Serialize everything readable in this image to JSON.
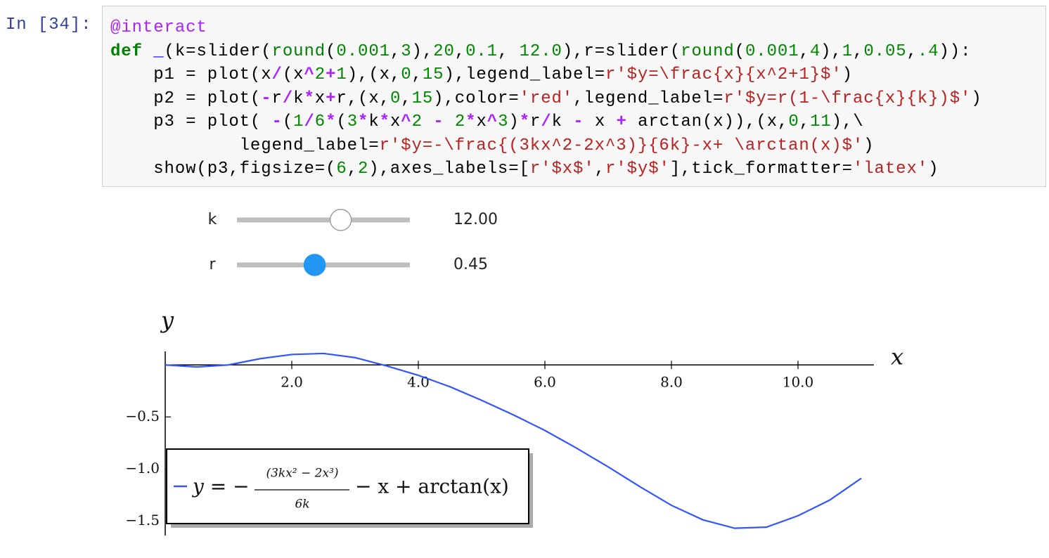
{
  "prompt": "In [34]:",
  "code": {
    "lines": [
      [
        [
          "@interact",
          "p"
        ]
      ],
      [
        [
          "def",
          "k"
        ],
        [
          " ",
          "d"
        ],
        [
          "_",
          "f"
        ],
        [
          "(k=slider(",
          "d"
        ],
        [
          "round",
          "b"
        ],
        [
          "(",
          "d"
        ],
        [
          "0.001",
          "n"
        ],
        [
          ",",
          "d"
        ],
        [
          "3",
          "n"
        ],
        [
          "),",
          "d"
        ],
        [
          "20",
          "n"
        ],
        [
          ",",
          "d"
        ],
        [
          "0.1",
          "n"
        ],
        [
          ", ",
          "d"
        ],
        [
          "12.0",
          "n"
        ],
        [
          "),r=slider(",
          "d"
        ],
        [
          "round",
          "b"
        ],
        [
          "(",
          "d"
        ],
        [
          "0.001",
          "n"
        ],
        [
          ",",
          "d"
        ],
        [
          "4",
          "n"
        ],
        [
          "),",
          "d"
        ],
        [
          "1",
          "n"
        ],
        [
          ",",
          "d"
        ],
        [
          "0.05",
          "n"
        ],
        [
          ",",
          "d"
        ],
        [
          ".4",
          "n"
        ],
        [
          ")):",
          "d"
        ]
      ],
      [
        [
          "    p1 = plot(x",
          "d"
        ],
        [
          "/",
          "o"
        ],
        [
          "(x",
          "d"
        ],
        [
          "^",
          "o"
        ],
        [
          "2",
          "n"
        ],
        [
          "+",
          "o"
        ],
        [
          "1",
          "n"
        ],
        [
          "),(x,",
          "d"
        ],
        [
          "0",
          "n"
        ],
        [
          ",",
          "d"
        ],
        [
          "15",
          "n"
        ],
        [
          "),legend_label=",
          "d"
        ],
        [
          "r'$y=\\frac{x}{x^2+1}$'",
          "s"
        ],
        [
          ")",
          "d"
        ]
      ],
      [
        [
          "    p2 = plot(",
          "d"
        ],
        [
          "-",
          "o"
        ],
        [
          "r",
          "d"
        ],
        [
          "/",
          "o"
        ],
        [
          "k",
          "d"
        ],
        [
          "*",
          "o"
        ],
        [
          "x",
          "d"
        ],
        [
          "+",
          "o"
        ],
        [
          "r,(x,",
          "d"
        ],
        [
          "0",
          "n"
        ],
        [
          ",",
          "d"
        ],
        [
          "15",
          "n"
        ],
        [
          "),color=",
          "d"
        ],
        [
          "'red'",
          "s"
        ],
        [
          ",legend_label=",
          "d"
        ],
        [
          "r'$y=r(1-\\frac{x}{k})$'",
          "s"
        ],
        [
          ")",
          "d"
        ]
      ],
      [
        [
          "    p3 = plot( ",
          "d"
        ],
        [
          "-",
          "o"
        ],
        [
          "(",
          "d"
        ],
        [
          "1",
          "n"
        ],
        [
          "/",
          "o"
        ],
        [
          "6",
          "n"
        ],
        [
          "*",
          "o"
        ],
        [
          "(",
          "d"
        ],
        [
          "3",
          "n"
        ],
        [
          "*",
          "o"
        ],
        [
          "k",
          "d"
        ],
        [
          "*",
          "o"
        ],
        [
          "x",
          "d"
        ],
        [
          "^",
          "o"
        ],
        [
          "2",
          "n"
        ],
        [
          " ",
          "d"
        ],
        [
          "-",
          "o"
        ],
        [
          " ",
          "d"
        ],
        [
          "2",
          "n"
        ],
        [
          "*",
          "o"
        ],
        [
          "x",
          "d"
        ],
        [
          "^",
          "o"
        ],
        [
          "3",
          "n"
        ],
        [
          ")",
          "d"
        ],
        [
          "*",
          "o"
        ],
        [
          "r",
          "d"
        ],
        [
          "/",
          "o"
        ],
        [
          "k ",
          "d"
        ],
        [
          "-",
          "o"
        ],
        [
          " x ",
          "d"
        ],
        [
          "+",
          "o"
        ],
        [
          " arctan(x)),(x,",
          "d"
        ],
        [
          "0",
          "n"
        ],
        [
          ",",
          "d"
        ],
        [
          "11",
          "n"
        ],
        [
          "),\\",
          "d"
        ]
      ],
      [
        [
          "            legend_label=",
          "d"
        ],
        [
          "r'$y=-\\frac{(3kx^2-2x^3)}{6k}-x+ \\arctan(x)$'",
          "s"
        ],
        [
          ")",
          "d"
        ]
      ],
      [
        [
          "    show(p3,figsize=(",
          "d"
        ],
        [
          "6",
          "n"
        ],
        [
          ",",
          "d"
        ],
        [
          "2",
          "n"
        ],
        [
          "),axes_labels=[",
          "d"
        ],
        [
          "r'$x$'",
          "s"
        ],
        [
          ",",
          "d"
        ],
        [
          "r'$y$'",
          "s"
        ],
        [
          "],tick_formatter=",
          "d"
        ],
        [
          "'latex'",
          "s"
        ],
        [
          ")",
          "d"
        ]
      ]
    ]
  },
  "sliders": [
    {
      "name": "k",
      "min": 0.001,
      "max": 20,
      "value": {
        "value": 12,
        "label": "12.00"
      },
      "active": false
    },
    {
      "name": "r",
      "min": 0.001,
      "max": 1,
      "value": {
        "value": 0.45,
        "label": "0.45"
      },
      "active": true
    }
  ],
  "chart_data": {
    "type": "line",
    "x_label": "x",
    "y_label": "y",
    "x": [
      0,
      0.5,
      1,
      1.5,
      2,
      2.5,
      3,
      3.5,
      4,
      4.5,
      5,
      5.5,
      6,
      6.5,
      7,
      7.5,
      8,
      8.5,
      9,
      9.5,
      10,
      10.5,
      11
    ],
    "series": [
      {
        "color": "#3355ff",
        "values": [
          0,
          -0.02,
          0,
          0.06,
          0.1,
          0.11,
          0.07,
          -0.01,
          -0.1,
          -0.21,
          -0.34,
          -0.48,
          -0.63,
          -0.8,
          -0.98,
          -1.17,
          -1.35,
          -1.49,
          -1.57,
          -1.56,
          -1.45,
          -1.3,
          -1.09
        ]
      }
    ],
    "legend": {
      "prefix": "y = −",
      "numerator": "(3kx² − 2x³)",
      "denominator": "6k",
      "suffix": "− x + arctan(x)"
    },
    "xlim": [
      0,
      11.2
    ],
    "ylim": [
      -1.64,
      0.13
    ],
    "xticks": [
      {
        "value": 2,
        "label": "2.0"
      },
      {
        "value": 4,
        "label": "4.0"
      },
      {
        "value": 6,
        "label": "6.0"
      },
      {
        "value": 8,
        "label": "8.0"
      },
      {
        "value": 10,
        "label": "10.0"
      }
    ],
    "yticks": [
      {
        "value": -0.5,
        "label": "−0.5"
      },
      {
        "value": -1,
        "label": "−1.0"
      },
      {
        "value": -1.5,
        "label": "−1.5"
      }
    ]
  }
}
